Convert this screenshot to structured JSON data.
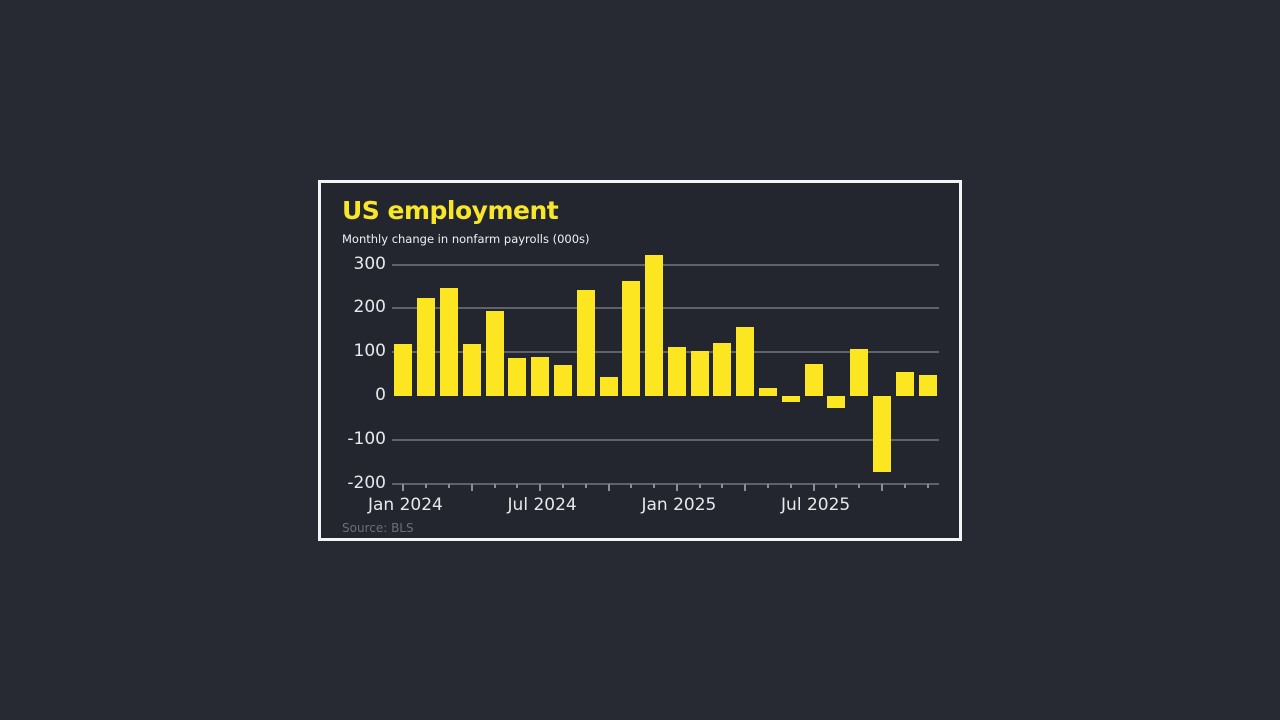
{
  "title": "US employment",
  "subtitle": "Monthly change in nonfarm payrolls (000s)",
  "source": "Source: BLS",
  "colors": {
    "page_background": "#272a33",
    "card_background": "#23262e",
    "card_border": "#f4f4f4",
    "title": "#f7e629",
    "bar": "#fbe621",
    "grid": "#5e626a"
  },
  "y_ticks": [
    {
      "value": 300,
      "label": "300"
    },
    {
      "value": 200,
      "label": "200"
    },
    {
      "value": 100,
      "label": "100"
    },
    {
      "value": 0,
      "label": "0"
    },
    {
      "value": -100,
      "label": "-100"
    },
    {
      "value": -200,
      "label": "-200"
    }
  ],
  "x_labels": [
    {
      "index": 0,
      "label": "Jan 2024"
    },
    {
      "index": 6,
      "label": "Jul 2024"
    },
    {
      "index": 12,
      "label": "Jan 2025"
    },
    {
      "index": 18,
      "label": "Jul 2025"
    }
  ],
  "chart_data": {
    "type": "bar",
    "title": "US employment",
    "subtitle": "Monthly change in nonfarm payrolls (000s)",
    "source": "Source: BLS",
    "xlabel": "",
    "ylabel": "Monthly change in nonfarm payrolls (000s)",
    "ylim": [
      -200,
      300
    ],
    "yticks": [
      -200,
      -100,
      0,
      100,
      200,
      300
    ],
    "grid": true,
    "legend": null,
    "categories": [
      "Jan 2024",
      "Feb 2024",
      "Mar 2024",
      "Apr 2024",
      "May 2024",
      "Jun 2024",
      "Jul 2024",
      "Aug 2024",
      "Sep 2024",
      "Oct 2024",
      "Nov 2024",
      "Dec 2024",
      "Jan 2025",
      "Feb 2025",
      "Mar 2025",
      "Apr 2025",
      "May 2025",
      "Jun 2025",
      "Jul 2025",
      "Aug 2025",
      "Sep 2025",
      "Oct 2025",
      "Nov 2025",
      "Dec 2025"
    ],
    "x_tick_labels": [
      "Jan 2024",
      "Jul 2024",
      "Jan 2025",
      "Jul 2025"
    ],
    "values": [
      118,
      223,
      246,
      118,
      194,
      87,
      88,
      70,
      241,
      43,
      262,
      323,
      111,
      102,
      120,
      158,
      19,
      -13,
      72,
      -27,
      108,
      -174,
      55,
      49
    ]
  }
}
